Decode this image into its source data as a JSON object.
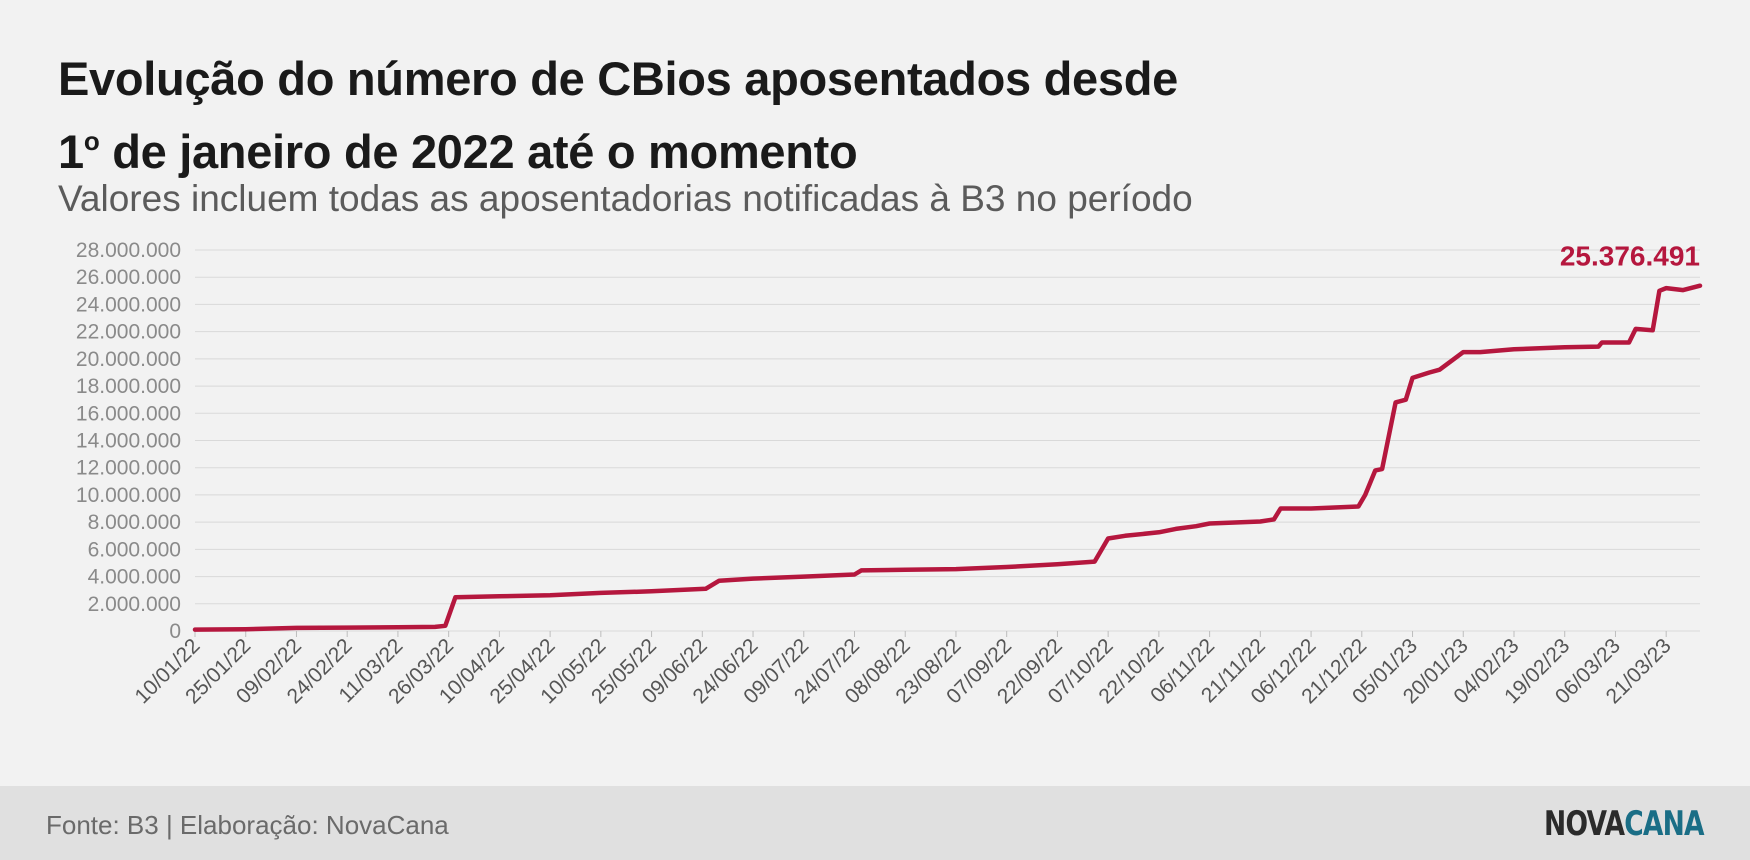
{
  "header": {
    "title_line1": "Evolução do número de CBios aposentados desde",
    "title_line2_prefix": "1",
    "title_line2_sup": "o",
    "title_line2_rest": " de janeiro de 2022 até o momento",
    "subtitle": "Valores incluem todas as aposentadorias notificadas à B3 no período"
  },
  "footer": {
    "source": "Fonte: B3 | Elaboração: NovaCana",
    "logo_part1": "NOVA",
    "logo_part2": "CANA"
  },
  "colors": {
    "line": "#b5173e",
    "grid": "#d9d9d9",
    "logo_accent": "#1a6e86"
  },
  "chart_data": {
    "type": "line",
    "title": "Evolução do número de CBios aposentados desde 1º de janeiro de 2022 até o momento",
    "subtitle": "Valores incluem todas as aposentadorias notificadas à B3 no período",
    "xlabel": "",
    "ylabel": "",
    "xlim": [
      "2022-01-10",
      "2023-03-31"
    ],
    "ylim": [
      0,
      28000000
    ],
    "y_ticks": [
      0,
      2000000,
      4000000,
      6000000,
      8000000,
      10000000,
      12000000,
      14000000,
      16000000,
      18000000,
      20000000,
      22000000,
      24000000,
      26000000,
      28000000
    ],
    "y_tick_labels": [
      "0",
      "2.000.000",
      "4.000.000",
      "6.000.000",
      "8.000.000",
      "10.000.000",
      "12.000.000",
      "14.000.000",
      "16.000.000",
      "18.000.000",
      "20.000.000",
      "22.000.000",
      "24.000.000",
      "26.000.000",
      "28.000.000"
    ],
    "x_ticks": [
      "2022-01-10",
      "2022-01-25",
      "2022-02-09",
      "2022-02-24",
      "2022-03-11",
      "2022-03-26",
      "2022-04-10",
      "2022-04-25",
      "2022-05-10",
      "2022-05-25",
      "2022-06-09",
      "2022-06-24",
      "2022-07-09",
      "2022-07-24",
      "2022-08-08",
      "2022-08-23",
      "2022-09-07",
      "2022-09-22",
      "2022-10-07",
      "2022-10-22",
      "2022-11-06",
      "2022-11-21",
      "2022-12-06",
      "2022-12-21",
      "2023-01-05",
      "2023-01-20",
      "2023-02-04",
      "2023-02-19",
      "2023-03-06",
      "2023-03-21"
    ],
    "x_tick_labels": [
      "10/01/22",
      "25/01/22",
      "09/02/22",
      "24/02/22",
      "11/03/22",
      "26/03/22",
      "10/04/22",
      "25/04/22",
      "10/05/22",
      "25/05/22",
      "09/06/22",
      "24/06/22",
      "09/07/22",
      "24/07/22",
      "08/08/22",
      "23/08/22",
      "07/09/22",
      "22/09/22",
      "07/10/22",
      "22/10/22",
      "06/11/22",
      "21/11/22",
      "06/12/22",
      "21/12/22",
      "05/01/23",
      "20/01/23",
      "04/02/23",
      "19/02/23",
      "06/03/23",
      "21/03/23"
    ],
    "grid": "horizontal",
    "legend": "none",
    "series": [
      {
        "x": [
          "2022-01-10",
          "2022-01-25",
          "2022-02-09",
          "2022-02-24",
          "2022-03-11",
          "2022-03-22",
          "2022-03-25",
          "2022-03-28",
          "2022-04-10",
          "2022-04-25",
          "2022-05-10",
          "2022-05-25",
          "2022-06-10",
          "2022-06-14",
          "2022-06-24",
          "2022-07-09",
          "2022-07-24",
          "2022-07-26",
          "2022-08-08",
          "2022-08-23",
          "2022-09-07",
          "2022-09-22",
          "2022-10-03",
          "2022-10-07",
          "2022-10-12",
          "2022-10-22",
          "2022-10-27",
          "2022-11-02",
          "2022-11-06",
          "2022-11-21",
          "2022-11-25",
          "2022-11-27",
          "2022-12-06",
          "2022-12-20",
          "2022-12-22",
          "2022-12-25",
          "2022-12-27",
          "2022-12-31",
          "2023-01-03",
          "2023-01-05",
          "2023-01-10",
          "2023-01-13",
          "2023-01-20",
          "2023-01-25",
          "2023-02-04",
          "2023-02-19",
          "2023-03-01",
          "2023-03-02",
          "2023-03-10",
          "2023-03-12",
          "2023-03-17",
          "2023-03-19",
          "2023-03-21",
          "2023-03-26",
          "2023-03-31"
        ],
        "values": [
          100000,
          130000,
          230000,
          250000,
          270000,
          300000,
          380000,
          2480000,
          2550000,
          2620000,
          2800000,
          2920000,
          3100000,
          3700000,
          3850000,
          4000000,
          4150000,
          4450000,
          4500000,
          4550000,
          4700000,
          4900000,
          5100000,
          6800000,
          7000000,
          7250000,
          7500000,
          7700000,
          7900000,
          8050000,
          8200000,
          9000000,
          9000000,
          9150000,
          10000000,
          11800000,
          11900000,
          16800000,
          17000000,
          18600000,
          19000000,
          19200000,
          20500000,
          20500000,
          20700000,
          20850000,
          20900000,
          21200000,
          21200000,
          22200000,
          22100000,
          25000000,
          25200000,
          25050000,
          25376491
        ]
      }
    ],
    "annotations": [
      {
        "text": "25.376.491",
        "x": "2023-03-31",
        "y": 25376491
      }
    ]
  }
}
